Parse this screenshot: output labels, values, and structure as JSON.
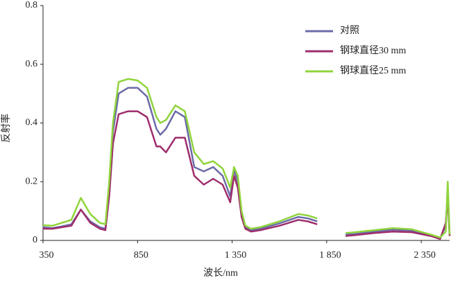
{
  "chart_data": {
    "type": "line",
    "x_label": "波长/nm",
    "y_label": "反射率",
    "x": [
      350,
      400,
      450,
      500,
      550,
      600,
      650,
      680,
      700,
      720,
      750,
      800,
      850,
      900,
      950,
      970,
      1000,
      1050,
      1100,
      1150,
      1200,
      1250,
      1300,
      1340,
      1360,
      1380,
      1400,
      1420,
      1450,
      1500,
      1600,
      1700,
      1750,
      1800,
      1875,
      1950,
      2000,
      2100,
      2200,
      2300,
      2400,
      2450,
      2480,
      2490,
      2500
    ],
    "series": [
      {
        "name": "对照",
        "color": "#6b6ba8",
        "values": [
          0.045,
          0.042,
          0.048,
          0.055,
          0.105,
          0.065,
          0.045,
          0.04,
          0.17,
          0.37,
          0.5,
          0.52,
          0.52,
          0.49,
          0.38,
          0.36,
          0.38,
          0.44,
          0.42,
          0.25,
          0.235,
          0.25,
          0.22,
          0.15,
          0.24,
          0.2,
          0.09,
          0.045,
          0.035,
          0.04,
          0.058,
          0.08,
          0.075,
          0.065,
          null,
          0.02,
          0.022,
          0.03,
          0.036,
          0.033,
          0.018,
          0.008,
          0.05,
          0.18,
          0.018
        ]
      },
      {
        "name": "钢球直径30 mm",
        "color": "#9e2d6c",
        "values": [
          0.04,
          0.04,
          0.045,
          0.05,
          0.105,
          0.06,
          0.04,
          0.035,
          0.15,
          0.33,
          0.43,
          0.44,
          0.44,
          0.42,
          0.32,
          0.32,
          0.3,
          0.35,
          0.35,
          0.22,
          0.19,
          0.21,
          0.19,
          0.13,
          0.22,
          0.18,
          0.08,
          0.04,
          0.03,
          0.035,
          0.05,
          0.07,
          0.065,
          0.055,
          null,
          0.015,
          0.018,
          0.025,
          0.03,
          0.028,
          0.015,
          0.005,
          0.06,
          0.15,
          0.015
        ]
      },
      {
        "name": "钢球直径25 mm",
        "color": "#8fd43a",
        "values": [
          0.052,
          0.05,
          0.06,
          0.07,
          0.145,
          0.09,
          0.06,
          0.055,
          0.2,
          0.4,
          0.54,
          0.55,
          0.545,
          0.52,
          0.42,
          0.4,
          0.41,
          0.46,
          0.44,
          0.3,
          0.26,
          0.27,
          0.245,
          0.18,
          0.25,
          0.22,
          0.1,
          0.05,
          0.04,
          0.045,
          0.065,
          0.09,
          0.085,
          0.075,
          null,
          0.025,
          0.028,
          0.035,
          0.042,
          0.038,
          0.02,
          0.01,
          0.03,
          0.2,
          0.02
        ]
      }
    ],
    "xlim": [
      350,
      2500
    ],
    "xticks": [
      350,
      850,
      {
        "value": 1350,
        "label": "1 350"
      },
      {
        "value": 1850,
        "label": "1 850"
      },
      {
        "value": 2350,
        "label": "2 350"
      }
    ],
    "ylim": [
      0,
      0.8
    ],
    "yticks": [
      0,
      0.2,
      0.4,
      0.6,
      0.8
    ],
    "legend": "upper right"
  }
}
